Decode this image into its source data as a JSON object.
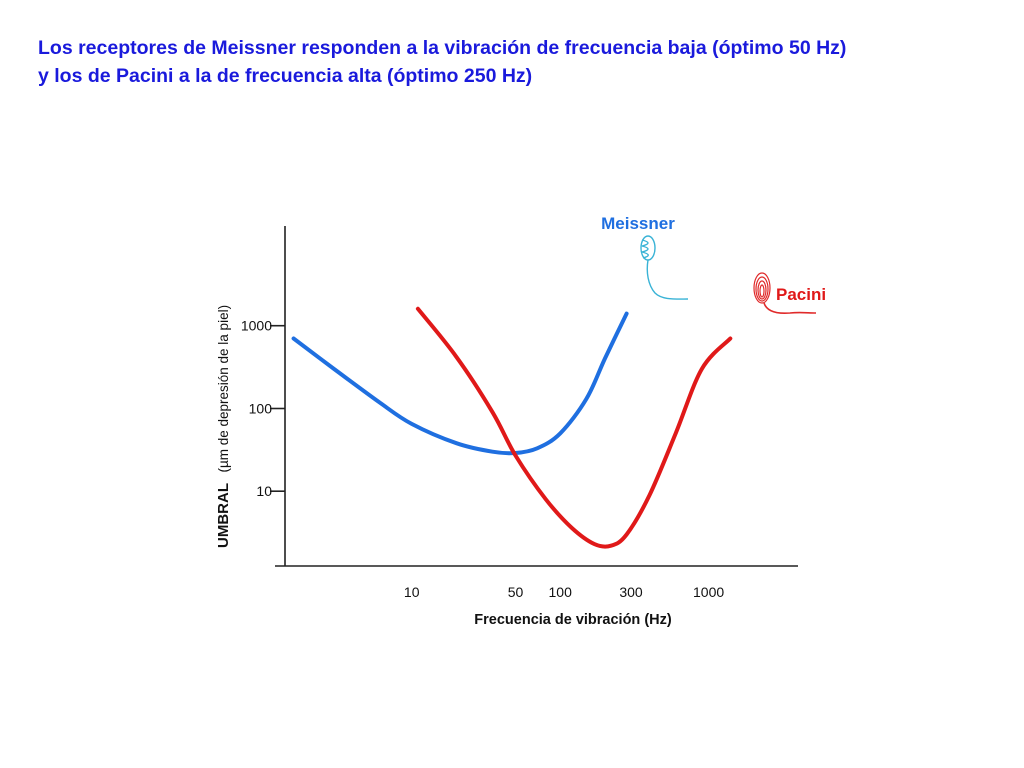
{
  "title": {
    "line1": "Los receptores de Meissner responden a la vibración de frecuencia baja (óptimo 50 Hz)",
    "line2": "y los de Pacini a la de frecuencia alta (óptimo 250 Hz)"
  },
  "colors": {
    "title": "#1a1adc",
    "meissner": "#1f6fe0",
    "pacini": "#e01919",
    "meissner_icon": "#39b3d6",
    "pacini_icon": "#e02a2a",
    "axis": "#222222"
  },
  "chart_data": {
    "type": "line",
    "xlabel": "Frecuencia de vibración (Hz)",
    "ylabel_main": "UMBRAL",
    "ylabel_sub": "(µm de depresión de la piel)",
    "x_scale": "log",
    "y_scale": "log",
    "xlim": [
      1.4,
      4000
    ],
    "ylim": [
      1.25,
      16000
    ],
    "x_ticks": [
      10,
      50,
      100,
      300,
      1000
    ],
    "x_tick_labels": [
      "10",
      "50",
      "100",
      "300",
      "1000"
    ],
    "y_ticks": [
      10,
      100,
      1000
    ],
    "y_tick_labels": [
      "10",
      "100",
      "1000"
    ],
    "grid": false,
    "legend": "inline",
    "series": [
      {
        "name": "Meissner",
        "color": "#1f6fe0",
        "x": [
          1.6,
          3,
          6,
          10,
          20,
          35,
          50,
          70,
          100,
          150,
          200,
          280
        ],
        "y": [
          700,
          300,
          120,
          65,
          38,
          30,
          29,
          33,
          50,
          130,
          400,
          1400
        ]
      },
      {
        "name": "Pacini",
        "color": "#e01919",
        "x": [
          11,
          20,
          35,
          50,
          80,
          120,
          170,
          220,
          280,
          400,
          600,
          900,
          1400
        ],
        "y": [
          1600,
          420,
          90,
          27,
          8,
          3.6,
          2.3,
          2.2,
          3.0,
          9,
          50,
          300,
          700
        ]
      }
    ]
  }
}
